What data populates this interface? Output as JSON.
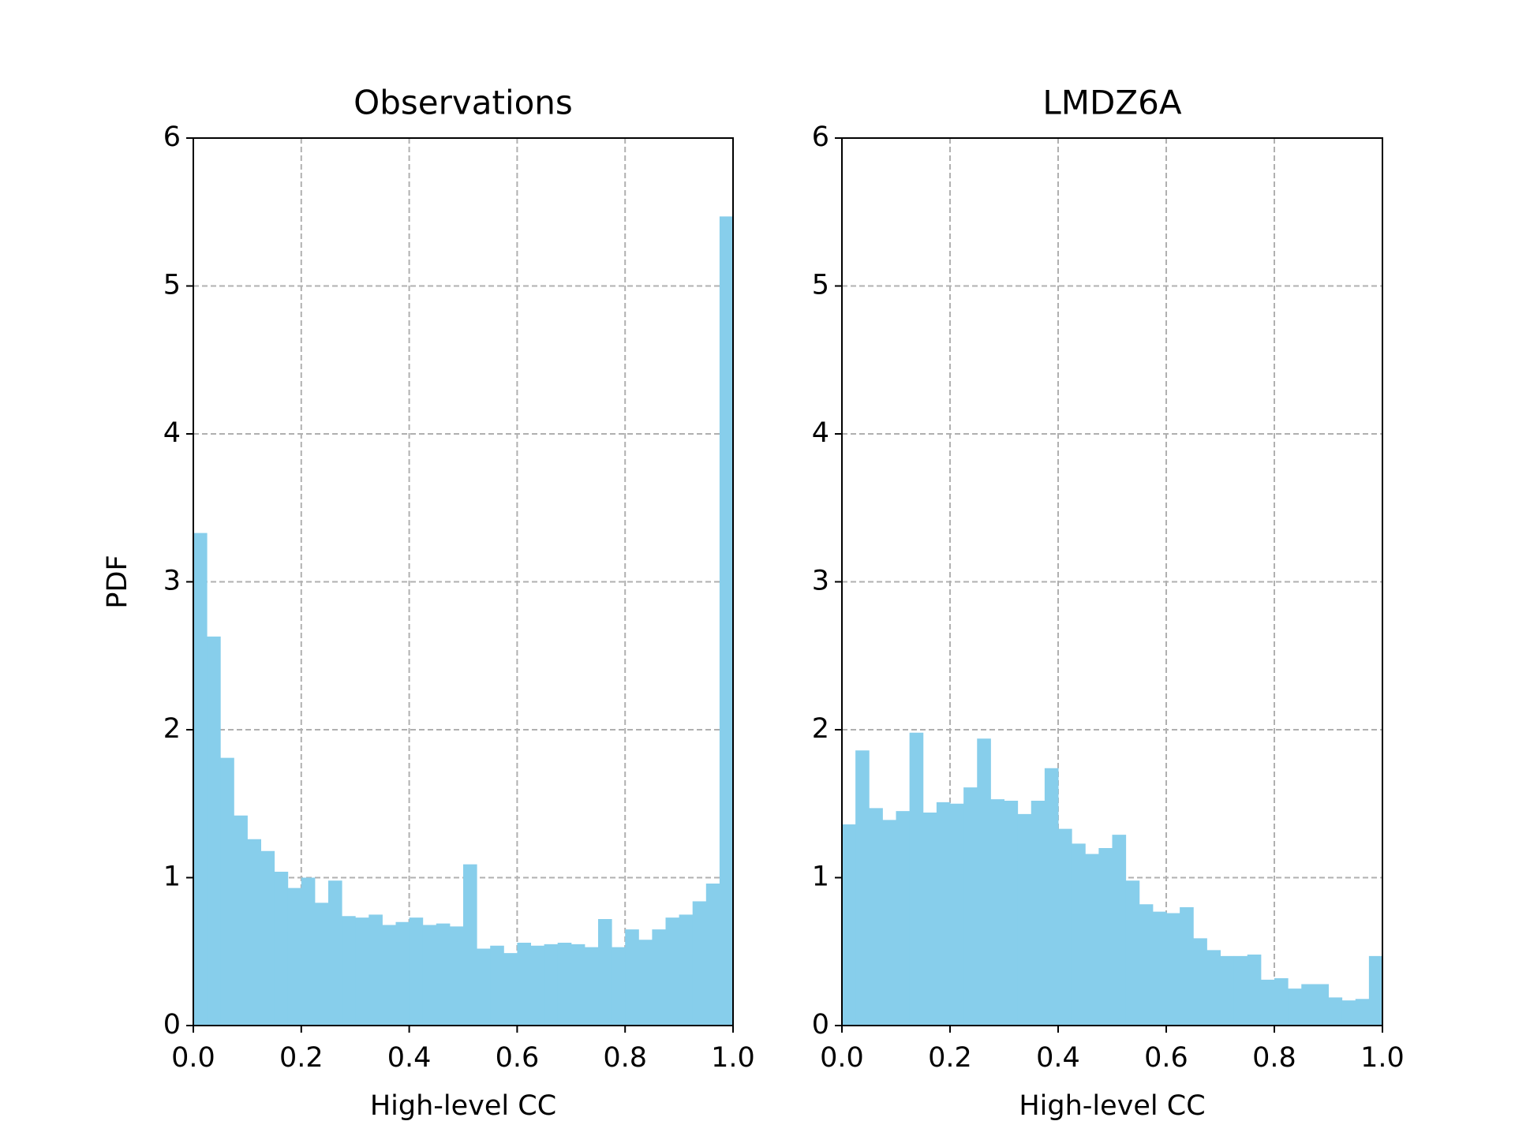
{
  "chart_data": [
    {
      "type": "histogram",
      "title": "Observations",
      "xlabel": "High-level CC",
      "ylabel": "PDF",
      "color": "#87ceeb",
      "bins": [
        0,
        0.025,
        0.05,
        0.075,
        0.1,
        0.125,
        0.15,
        0.175,
        0.2,
        0.225,
        0.25,
        0.275,
        0.3,
        0.325,
        0.35,
        0.375,
        0.4,
        0.425,
        0.45,
        0.475,
        0.5,
        0.525,
        0.55,
        0.575,
        0.6,
        0.625,
        0.65,
        0.675,
        0.7,
        0.725,
        0.75,
        0.775,
        0.8,
        0.825,
        0.85,
        0.875,
        0.9,
        0.925,
        0.95,
        0.975,
        1
      ],
      "counts": [
        3.33,
        2.63,
        1.81,
        1.42,
        1.26,
        1.18,
        1.04,
        0.93,
        1.0,
        0.83,
        0.98,
        0.74,
        0.73,
        0.75,
        0.68,
        0.7,
        0.73,
        0.68,
        0.69,
        0.67,
        1.09,
        0.52,
        0.54,
        0.49,
        0.56,
        0.54,
        0.55,
        0.56,
        0.55,
        0.53,
        0.72,
        0.53,
        0.65,
        0.58,
        0.65,
        0.73,
        0.75,
        0.84,
        0.96,
        5.47
      ],
      "xlim": [
        0,
        1
      ],
      "ylim": [
        0,
        6
      ],
      "xticks": [
        {
          "value": 0,
          "label": "0.0"
        },
        0.2,
        0.4,
        0.6,
        0.8,
        {
          "value": 1,
          "label": "1.0"
        }
      ],
      "yticks": [
        0,
        1,
        2,
        3,
        4,
        5,
        6
      ],
      "grid": true
    },
    {
      "type": "histogram",
      "title": "LMDZ6A",
      "xlabel": "High-level CC",
      "color": "#87ceeb",
      "bins": [
        0,
        0.025,
        0.05,
        0.075,
        0.1,
        0.125,
        0.15,
        0.175,
        0.2,
        0.225,
        0.25,
        0.275,
        0.3,
        0.325,
        0.35,
        0.375,
        0.4,
        0.425,
        0.45,
        0.475,
        0.5,
        0.525,
        0.55,
        0.575,
        0.6,
        0.625,
        0.65,
        0.675,
        0.7,
        0.725,
        0.75,
        0.775,
        0.8,
        0.825,
        0.85,
        0.875,
        0.9,
        0.925,
        0.95,
        0.975,
        1
      ],
      "counts": [
        1.36,
        1.86,
        1.47,
        1.39,
        1.45,
        1.98,
        1.44,
        1.51,
        1.5,
        1.61,
        1.94,
        1.53,
        1.52,
        1.43,
        1.52,
        1.74,
        1.33,
        1.23,
        1.16,
        1.2,
        1.29,
        0.98,
        0.82,
        0.77,
        0.76,
        0.8,
        0.59,
        0.51,
        0.47,
        0.47,
        0.48,
        0.31,
        0.32,
        0.25,
        0.28,
        0.28,
        0.19,
        0.17,
        0.18,
        0.47
      ],
      "xlim": [
        0,
        1
      ],
      "ylim": [
        0,
        6
      ],
      "xticks": [
        {
          "value": 0,
          "label": "0.0"
        },
        0.2,
        0.4,
        0.6,
        0.8,
        {
          "value": 1,
          "label": "1.0"
        }
      ],
      "yticks": [
        0,
        1,
        2,
        3,
        4,
        5,
        6
      ],
      "grid": true
    }
  ]
}
